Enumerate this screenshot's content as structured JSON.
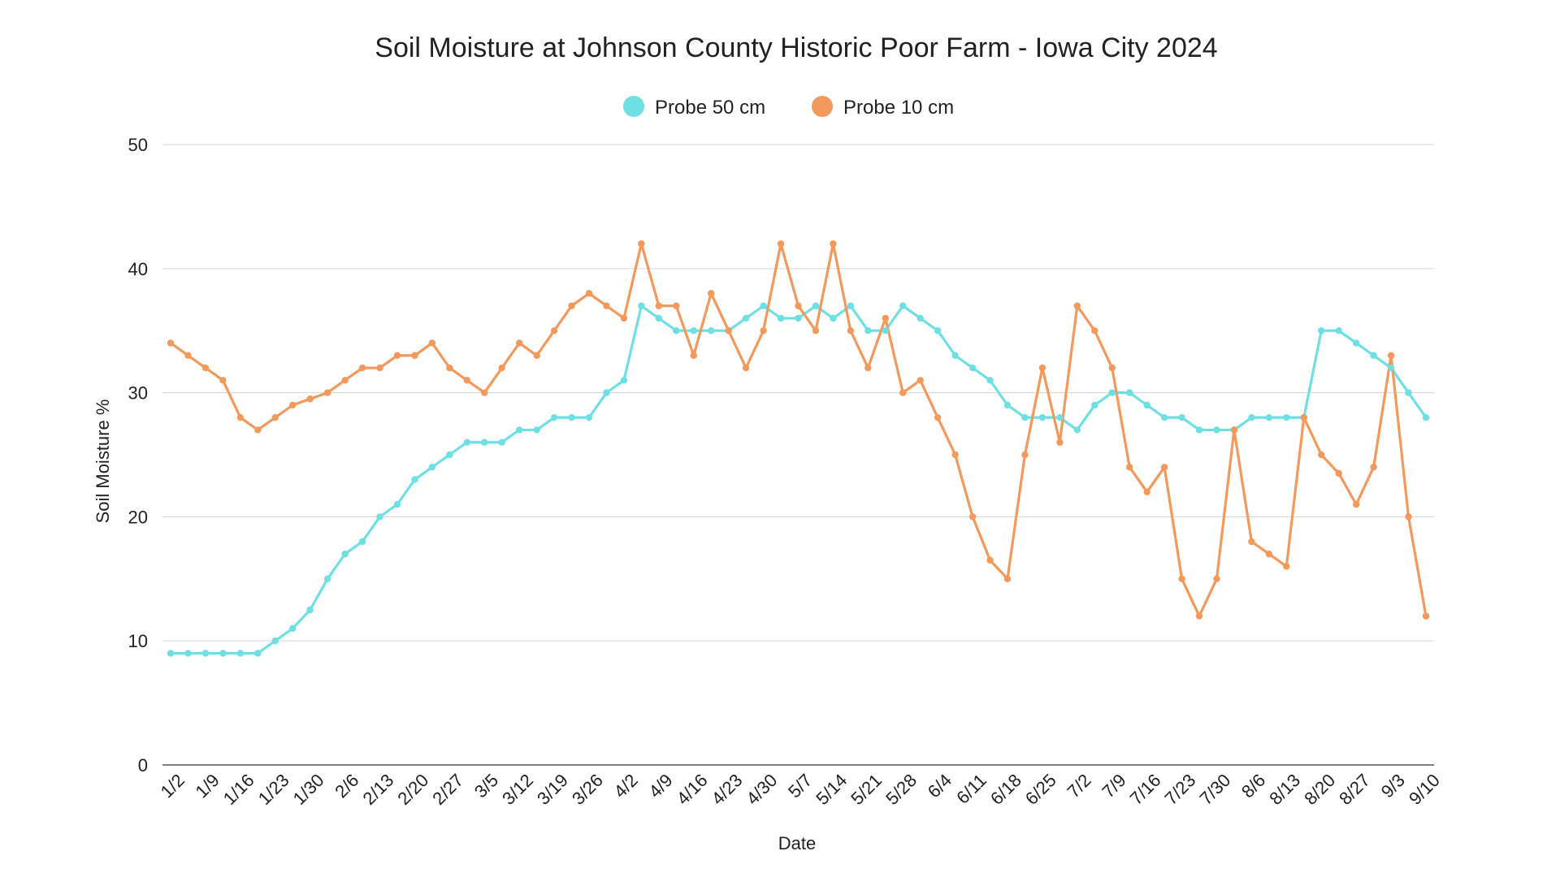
{
  "chart_data": {
    "type": "line",
    "title": "Soil Moisture at Johnson County Historic Poor Farm - Iowa City 2024",
    "xlabel": "Date",
    "ylabel": "Soil Moisture %",
    "ylim": [
      0,
      50
    ],
    "yticks": [
      0,
      10,
      20,
      30,
      40,
      50
    ],
    "grid": true,
    "legend_position": "top-center",
    "x_tick_labels": [
      "1/2",
      "1/9",
      "1/16",
      "1/23",
      "1/30",
      "2/6",
      "2/13",
      "2/20",
      "2/27",
      "3/5",
      "3/12",
      "3/19",
      "3/26",
      "4/2",
      "4/9",
      "4/16",
      "4/23",
      "4/30",
      "5/7",
      "5/14",
      "5/21",
      "5/28",
      "6/4",
      "6/11",
      "6/18",
      "6/25",
      "7/2",
      "7/9",
      "7/16",
      "7/23",
      "7/30",
      "8/6",
      "8/13",
      "8/20",
      "8/27",
      "9/3",
      "9/10"
    ],
    "series": [
      {
        "name": "Probe 50 cm",
        "color": "#6ee0e3",
        "values": [
          9,
          9,
          9,
          9,
          9,
          9,
          10,
          11,
          12.5,
          15,
          17,
          18,
          20,
          21,
          23,
          24,
          25,
          26,
          26,
          26,
          27,
          27,
          28,
          28,
          28,
          30,
          31,
          37,
          36,
          35,
          35,
          35,
          35,
          36,
          37,
          36,
          36,
          37,
          36,
          37,
          35,
          35,
          37,
          36,
          35,
          33,
          32,
          31,
          29,
          28,
          28,
          28,
          27,
          29,
          30,
          30,
          29,
          28,
          28,
          27,
          27,
          27,
          28,
          28,
          28,
          28,
          35,
          35,
          34,
          33,
          32,
          30,
          28
        ]
      },
      {
        "name": "Probe 10 cm",
        "color": "#f2995b",
        "values": [
          34,
          33,
          32,
          31,
          28,
          27,
          28,
          29,
          29.5,
          30,
          31,
          32,
          32,
          33,
          33,
          34,
          32,
          31,
          30,
          32,
          34,
          33,
          35,
          37,
          38,
          37,
          36,
          42,
          37,
          37,
          33,
          38,
          35,
          32,
          35,
          42,
          37,
          35,
          42,
          35,
          32,
          36,
          30,
          31,
          28,
          25,
          20,
          16.5,
          15,
          25,
          32,
          26,
          37,
          35,
          32,
          24,
          22,
          24,
          15,
          12,
          15,
          27,
          18,
          17,
          16,
          28,
          25,
          23.5,
          21,
          24,
          33,
          20,
          12
        ]
      }
    ]
  }
}
